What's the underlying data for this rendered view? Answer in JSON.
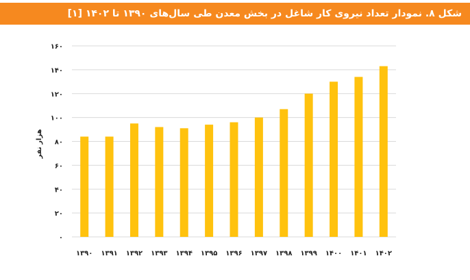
{
  "title": "شکل ۸. نمودار تعداد نیروی کار شاغل در بخش معدن طی سال‌های ۱۳۹۰ تا ۱۴۰۲ [۱]",
  "colors": {
    "header": "#f6891f",
    "bar": "#ffc20e",
    "grid": "#d9d9d9"
  },
  "chart_data": {
    "type": "bar",
    "categories": [
      "۱۳۹۰",
      "۱۳۹۱",
      "۱۳۹۲",
      "۱۳۹۳",
      "۱۳۹۴",
      "۱۳۹۵",
      "۱۳۹۶",
      "۱۳۹۷",
      "۱۳۹۸",
      "۱۳۹۹",
      "۱۴۰۰",
      "۱۴۰۱",
      "۱۴۰۲"
    ],
    "values": [
      84,
      84,
      95,
      92,
      91,
      94,
      96,
      100,
      107,
      120,
      130,
      134,
      143
    ],
    "ylabel": "هزار نفر",
    "ylim": [
      0,
      160
    ],
    "yticks": [
      0,
      20,
      40,
      60,
      80,
      100,
      120,
      140,
      160
    ],
    "ytick_labels": [
      "۰",
      "۲۰",
      "۴۰",
      "۶۰",
      "۸۰",
      "۱۰۰",
      "۱۲۰",
      "۱۴۰",
      "۱۶۰"
    ],
    "grid": true,
    "legend": "none"
  }
}
